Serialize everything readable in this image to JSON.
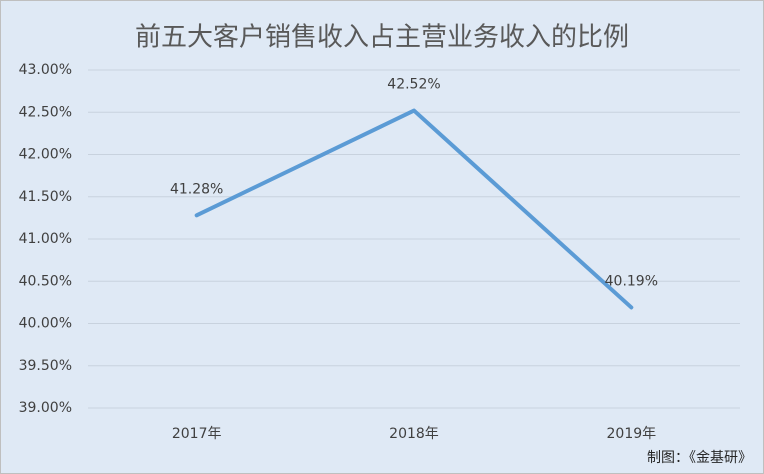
{
  "chart_data": {
    "type": "line",
    "title": "前五大客户销售收入占主营业务收入的比例",
    "categories": [
      "2017年",
      "2018年",
      "2019年"
    ],
    "series": [
      {
        "values": [
          41.28,
          42.52,
          40.19
        ],
        "value_labels": [
          "41.28%",
          "42.52%",
          "40.19%"
        ],
        "color": "#5b9bd5"
      }
    ],
    "ylim": [
      39,
      43
    ],
    "yticks": [
      {
        "value": 39,
        "label": "39.00%"
      },
      {
        "value": 39.5,
        "label": "39.50%"
      },
      {
        "value": 40,
        "label": "40.00%"
      },
      {
        "value": 40.5,
        "label": "40.50%"
      },
      {
        "value": 41,
        "label": "41.00%"
      },
      {
        "value": 41.5,
        "label": "41.50%"
      },
      {
        "value": 42,
        "label": "42.00%"
      },
      {
        "value": 42.5,
        "label": "42.50%"
      },
      {
        "value": 43,
        "label": "43.00%"
      }
    ],
    "grid": true,
    "annotation": "制图：《金基研》"
  }
}
